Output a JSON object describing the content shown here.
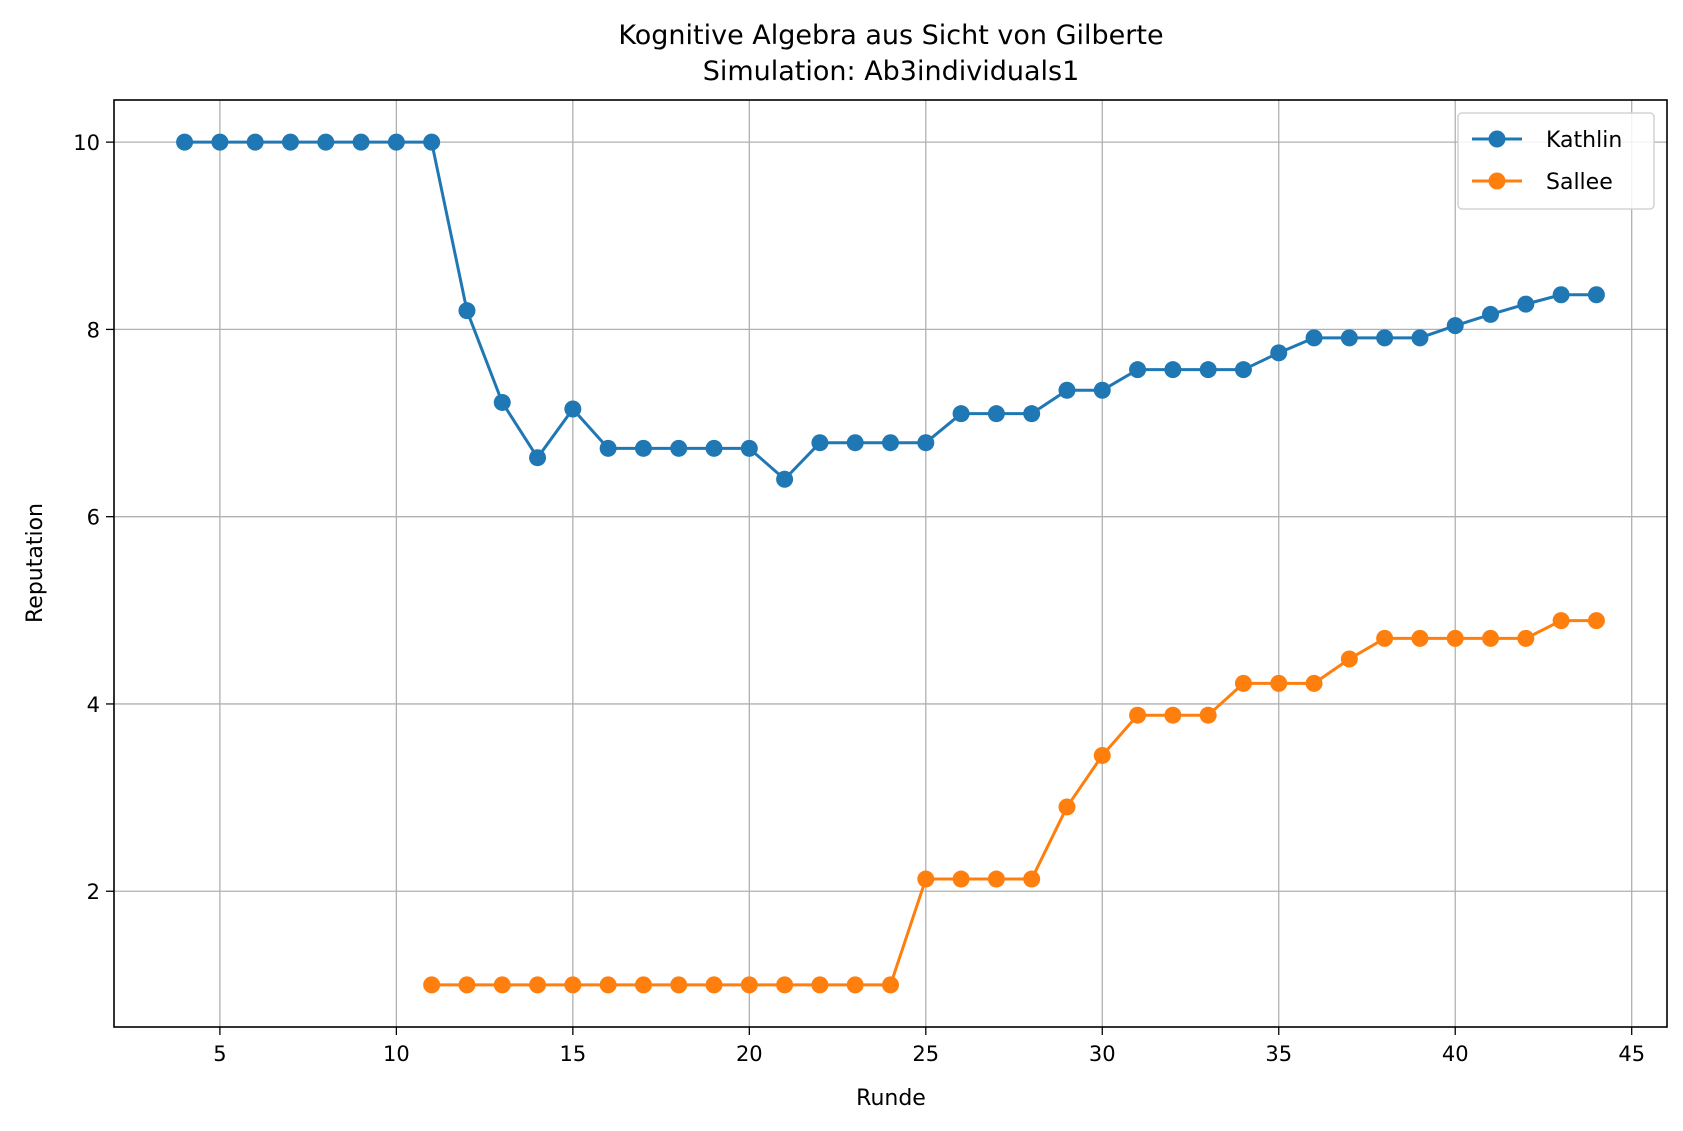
{
  "chart_data": {
    "type": "line",
    "title": "Kognitive Algebra aus Sicht von Gilberte",
    "subtitle": "Simulation: Ab3individuals1",
    "xlabel": "Runde",
    "ylabel": "Reputation",
    "xlim": [
      2.0,
      46.0
    ],
    "ylim": [
      0.55,
      10.45
    ],
    "xticks": [
      5,
      10,
      15,
      20,
      25,
      30,
      35,
      40,
      45
    ],
    "yticks": [
      2,
      4,
      6,
      8,
      10
    ],
    "grid": true,
    "legend_position": "top-right",
    "series": [
      {
        "name": "Kathlin",
        "color": "#1f77b4",
        "x": [
          4,
          5,
          6,
          7,
          8,
          9,
          10,
          11,
          12,
          13,
          14,
          15,
          16,
          17,
          18,
          19,
          20,
          21,
          22,
          23,
          24,
          25,
          26,
          27,
          28,
          29,
          30,
          31,
          32,
          33,
          34,
          35,
          36,
          37,
          38,
          39,
          40,
          41,
          42,
          43,
          44
        ],
        "y": [
          10,
          10,
          10,
          10,
          10,
          10,
          10,
          10,
          8.2,
          7.22,
          6.63,
          7.15,
          6.73,
          6.73,
          6.73,
          6.73,
          6.73,
          6.4,
          6.79,
          6.79,
          6.79,
          6.79,
          7.1,
          7.1,
          7.1,
          7.35,
          7.35,
          7.57,
          7.57,
          7.57,
          7.57,
          7.75,
          7.91,
          7.91,
          7.91,
          7.91,
          8.04,
          8.16,
          8.27,
          8.37,
          8.37
        ]
      },
      {
        "name": "Sallee",
        "color": "#ff7f0e",
        "x": [
          11,
          12,
          13,
          14,
          15,
          16,
          17,
          18,
          19,
          20,
          21,
          22,
          23,
          24,
          25,
          26,
          27,
          28,
          29,
          30,
          31,
          32,
          33,
          34,
          35,
          36,
          37,
          38,
          39,
          40,
          41,
          42,
          43,
          44
        ],
        "y": [
          1,
          1,
          1,
          1,
          1,
          1,
          1,
          1,
          1,
          1,
          1,
          1,
          1,
          1,
          2.13,
          2.13,
          2.13,
          2.13,
          2.9,
          3.45,
          3.88,
          3.88,
          3.88,
          4.22,
          4.22,
          4.22,
          4.48,
          4.7,
          4.7,
          4.7,
          4.7,
          4.7,
          4.89,
          4.89
        ]
      }
    ]
  }
}
